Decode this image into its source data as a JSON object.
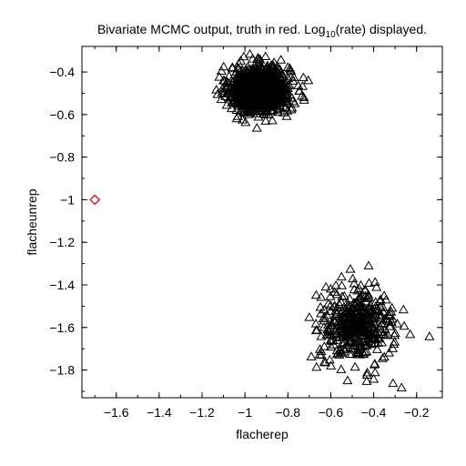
{
  "chart_data": {
    "type": "scatter",
    "title": "Bivariate MCMC output, truth in red. Log",
    "title_sub": "10",
    "title_suffix": "(rate) displayed.",
    "xlabel": "flacherep",
    "ylabel": "flacheunrep",
    "xlim": [
      -1.76,
      -0.08
    ],
    "ylim": [
      -1.93,
      -0.28
    ],
    "xticks": [
      -1.6,
      -1.4,
      -1.2,
      -1.0,
      -0.8,
      -0.6,
      -0.4,
      -0.2
    ],
    "xtick_labels": [
      "−1.6",
      "−1.4",
      "−1.2",
      "−1",
      "−0.8",
      "−0.6",
      "−0.4",
      "−0.2"
    ],
    "yticks": [
      -0.4,
      -0.6,
      -0.8,
      -1.0,
      -1.2,
      -1.4,
      -1.6,
      -1.8
    ],
    "ytick_labels": [
      "−0.4",
      "−0.6",
      "−0.8",
      "−1",
      "−1.2",
      "−1.4",
      "−1.6",
      "−1.8"
    ],
    "grid": false,
    "truth": {
      "x": -1.7,
      "y": -1.0,
      "marker": "diamond",
      "color": "#e01010"
    },
    "series": [
      {
        "marker": "triangle",
        "color": "#000000",
        "clusters": [
          {
            "center_x": -0.93,
            "center_y": -0.48,
            "spread_x": 0.07,
            "spread_y": 0.055,
            "count": 1000
          },
          {
            "center_x": -0.48,
            "center_y": -1.59,
            "spread_x": 0.085,
            "spread_y": 0.085,
            "count": 420
          }
        ]
      }
    ],
    "outlier_points": [
      [
        -0.14,
        -1.64
      ],
      [
        -0.27,
        -1.88
      ],
      [
        -0.31,
        -1.86
      ],
      [
        -0.23,
        -1.63
      ],
      [
        -0.55,
        -1.36
      ],
      [
        -0.7,
        -1.55
      ],
      [
        -0.63,
        -1.76
      ],
      [
        -0.4,
        -1.84
      ],
      [
        -0.29,
        -1.58
      ],
      [
        -0.43,
        -1.81
      ]
    ]
  }
}
